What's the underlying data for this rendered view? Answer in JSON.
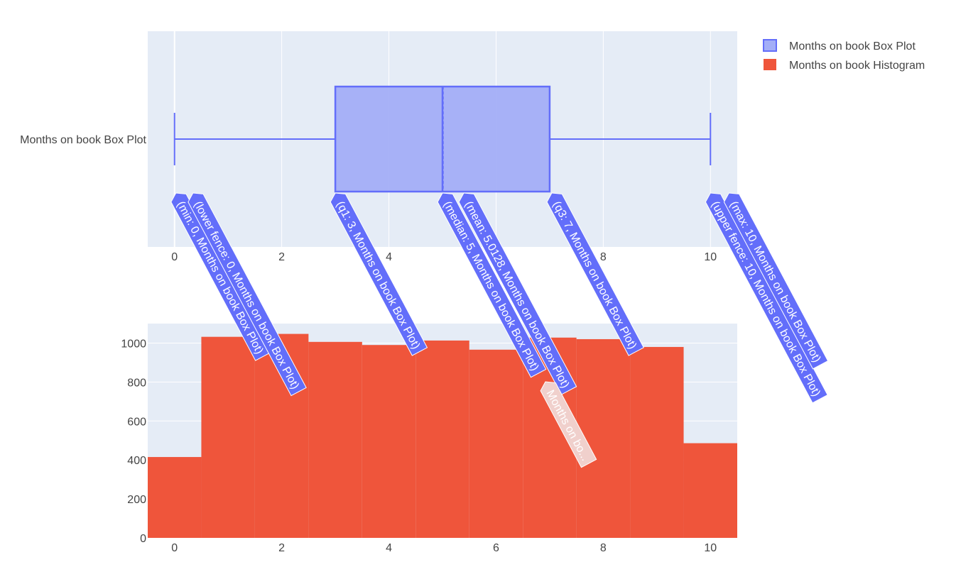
{
  "chart_data": {
    "type": "box+histogram",
    "legend": {
      "position": "top-right",
      "items": [
        {
          "label": "Months on book Box Plot",
          "color": "#636efa",
          "fill": "#a3aef7"
        },
        {
          "label": "Months on book Histogram",
          "color": "#ef553b"
        }
      ]
    },
    "box": {
      "name": "Months on book Box Plot",
      "category_label": "Months on book Box Plot",
      "min": 0,
      "lower_fence": 0,
      "q1": 3,
      "median": 5,
      "mean": 5.0128,
      "q3": 7,
      "upper_fence": 10,
      "max": 10,
      "xlim": [
        -0.5,
        10.5
      ],
      "xticks": [
        0,
        2,
        4,
        6,
        8,
        10
      ],
      "xtick_labels": [
        "0",
        "2",
        "4",
        "6",
        "8",
        "10"
      ],
      "grid": true,
      "color": "#636efa",
      "fill_color": "#a3aef7",
      "hover_labels": [
        {
          "text": "(min: 0, Months on book Box Plot)",
          "x": 0
        },
        {
          "text": "(lower fence: 0, Months on book Box Plot)",
          "x": 0
        },
        {
          "text": "(q1: 3, Months on book Box Plot)",
          "x": 3
        },
        {
          "text": "(median: 5, Months on book Box Plot)",
          "x": 5
        },
        {
          "text": "(mean: 5.0128, Months on book Box Plot)",
          "x": 5.0128
        },
        {
          "text": "(q3: 7, Months on book Box Plot)",
          "x": 7
        },
        {
          "text": "(upper fence: 10, Months on book Box Plot)",
          "x": 10
        },
        {
          "text": "(max: 10, Months on book Box Plot)",
          "x": 10
        }
      ]
    },
    "histogram": {
      "name": "Months on book Histogram",
      "x": [
        0,
        1,
        2,
        3,
        4,
        5,
        6,
        7,
        8,
        9,
        10
      ],
      "values": [
        415,
        1032,
        1047,
        1006,
        990,
        1013,
        966,
        1028,
        1020,
        980,
        486
      ],
      "xlim": [
        -0.5,
        10.5
      ],
      "ylim": [
        0,
        1100
      ],
      "xticks": [
        0,
        2,
        4,
        6,
        8,
        10
      ],
      "xtick_labels": [
        "0",
        "2",
        "4",
        "6",
        "8",
        "10"
      ],
      "yticks": [
        0,
        200,
        400,
        600,
        800,
        1000
      ],
      "ytick_labels": [
        "0",
        "200",
        "400",
        "600",
        "800",
        "1000"
      ],
      "grid": true,
      "color": "#ef553b",
      "hover_label": {
        "text": "Months on bo...",
        "x": 7
      }
    }
  },
  "colors": {
    "plot_bg": "#e5ecf6",
    "grid": "#ffffff",
    "tick_text": "#444444"
  }
}
